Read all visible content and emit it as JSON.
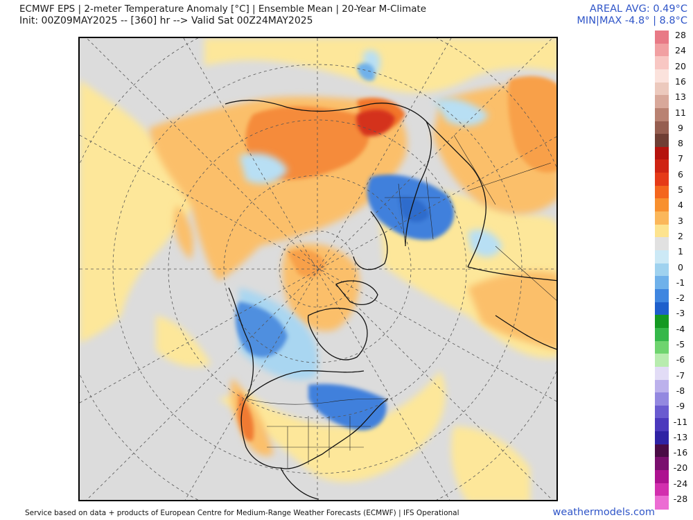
{
  "header": {
    "title_line1": "ECMWF EPS | 2-meter Temperature Anomaly [°C] | Ensemble Mean | 20-Year M-Climate",
    "title_line2": "Init: 00Z09MAY2025 -- [360] hr --> Valid Sat 00Z24MAY2025",
    "areal_avg": "AREAL AVG: 0.49°C",
    "min_max": "MIN|MAX -4.8° | 8.8°C"
  },
  "map": {
    "projection": "north-polar-stereographic",
    "field": "2-meter temperature anomaly",
    "regions": [
      {
        "name": "western-united-states",
        "anomaly": "warm",
        "approx_c": 4
      },
      {
        "name": "central-eastern-united-states",
        "anomaly": "cold",
        "approx_c": -3
      },
      {
        "name": "western-canada-alaska",
        "anomaly": "cold",
        "approx_c": -3
      },
      {
        "name": "greenland",
        "anomaly": "warm",
        "approx_c": 2
      },
      {
        "name": "eastern-europe-western-russia",
        "anomaly": "cold",
        "approx_c": -3
      },
      {
        "name": "central-siberia",
        "anomaly": "warm",
        "approx_c": 6
      },
      {
        "name": "arctic-ocean",
        "anomaly": "warm",
        "approx_c": 3
      },
      {
        "name": "north-africa-middle-east",
        "anomaly": "warm",
        "approx_c": 2
      },
      {
        "name": "east-asia",
        "anomaly": "warm",
        "approx_c": 2
      }
    ]
  },
  "colorbar": {
    "labels": [
      "28",
      "24",
      "20",
      "16",
      "13",
      "11",
      "9",
      "8",
      "7",
      "6",
      "5",
      "4",
      "3",
      "2",
      "1",
      "0",
      "-1",
      "-2",
      "-3",
      "-4",
      "-5",
      "-6",
      "-7",
      "-8",
      "-9",
      "-11",
      "-13",
      "-16",
      "-20",
      "-24",
      "-28"
    ],
    "colors": [
      "#e87a86",
      "#f1a0a2",
      "#f8c7c3",
      "#fbe2dc",
      "#ecc9bd",
      "#d8a89a",
      "#b98272",
      "#965e50",
      "#6f3e34",
      "#b5130e",
      "#cf2413",
      "#e53a18",
      "#f4661e",
      "#f8902e",
      "#fbb75a",
      "#fde38f",
      "#e1e1e1",
      "#cce9f6",
      "#9fd2ef",
      "#6fb1ea",
      "#3f86e0",
      "#1e5fcc",
      "#139922",
      "#35b84a",
      "#6fd46f",
      "#b8ecaf",
      "#e2dcf6",
      "#bcb1ec",
      "#9388e0",
      "#6a5bd0",
      "#4b39bd",
      "#2f22a4",
      "#4a0b46",
      "#7a0f6e",
      "#ad1290",
      "#d22fae",
      "#ec6cd3"
    ]
  },
  "footer": {
    "credit": "Service based on data + products of European Centre for Medium-Range Weather Forecasts (ECMWF) | IFS Operational",
    "site": "weathermodels.com"
  }
}
